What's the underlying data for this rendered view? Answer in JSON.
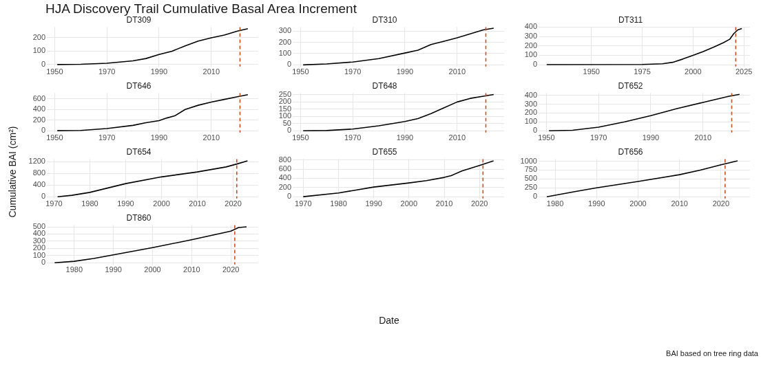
{
  "chart_data": [
    {
      "type": "line",
      "title": "DT309",
      "x": [
        1951,
        1960,
        1970,
        1980,
        1985,
        1990,
        1995,
        2000,
        2005,
        2010,
        2015,
        2020,
        2024
      ],
      "values": [
        0,
        2,
        10,
        28,
        45,
        75,
        100,
        140,
        175,
        200,
        220,
        250,
        268
      ],
      "color": "#000000",
      "xlim": [
        1947,
        2028
      ],
      "ylim": [
        -15,
        280
      ],
      "xticks": [
        1950,
        1970,
        1990,
        2010
      ],
      "yticks": [
        0,
        100,
        200
      ],
      "grid": true,
      "ref_lines": [
        {
          "axis": "x",
          "value": 2021,
          "color": "#c8501e",
          "line_style": "dashed"
        }
      ]
    },
    {
      "type": "line",
      "title": "DT310",
      "x": [
        1951,
        1960,
        1970,
        1980,
        1990,
        1995,
        2000,
        2005,
        2010,
        2015,
        2020,
        2024
      ],
      "values": [
        0,
        8,
        25,
        55,
        105,
        130,
        180,
        210,
        240,
        275,
        310,
        325
      ],
      "color": "#000000",
      "xlim": [
        1947,
        2028
      ],
      "ylim": [
        -15,
        335
      ],
      "xticks": [
        1950,
        1970,
        1990,
        2010
      ],
      "yticks": [
        0,
        100,
        200,
        300
      ],
      "grid": true,
      "ref_lines": [
        {
          "axis": "x",
          "value": 2021,
          "color": "#c8501e",
          "line_style": "dashed"
        }
      ]
    },
    {
      "type": "line",
      "title": "DT311",
      "x": [
        1928,
        1975,
        1985,
        1990,
        1995,
        2000,
        2005,
        2010,
        2015,
        2018,
        2020,
        2022,
        2024
      ],
      "values": [
        0,
        2,
        10,
        25,
        60,
        100,
        140,
        185,
        235,
        270,
        330,
        370,
        385
      ],
      "color": "#000000",
      "xlim": [
        1924,
        2028
      ],
      "ylim": [
        -20,
        400
      ],
      "xticks": [
        1950,
        1975,
        2000,
        2025
      ],
      "yticks": [
        0,
        100,
        200,
        300,
        400
      ],
      "grid": true,
      "ref_lines": [
        {
          "axis": "x",
          "value": 2021,
          "color": "#c8501e",
          "line_style": "dashed"
        }
      ]
    },
    {
      "type": "line",
      "title": "DT646",
      "x": [
        1951,
        1960,
        1970,
        1980,
        1985,
        1990,
        1993,
        1996,
        2000,
        2005,
        2010,
        2015,
        2020,
        2024
      ],
      "values": [
        0,
        5,
        40,
        100,
        150,
        190,
        240,
        280,
        400,
        480,
        540,
        590,
        640,
        680
      ],
      "color": "#000000",
      "xlim": [
        1947,
        2028
      ],
      "ylim": [
        -35,
        710
      ],
      "xticks": [
        1950,
        1970,
        1990,
        2010
      ],
      "yticks": [
        0,
        200,
        400,
        600
      ],
      "grid": true,
      "ref_lines": [
        {
          "axis": "x",
          "value": 2021,
          "color": "#c8501e",
          "line_style": "dashed"
        }
      ]
    },
    {
      "type": "line",
      "title": "DT648",
      "x": [
        1951,
        1960,
        1970,
        1980,
        1990,
        1995,
        2000,
        2005,
        2010,
        2015,
        2020,
        2024
      ],
      "values": [
        0,
        2,
        12,
        35,
        65,
        85,
        120,
        160,
        200,
        225,
        240,
        252
      ],
      "color": "#000000",
      "xlim": [
        1947,
        2028
      ],
      "ylim": [
        -12,
        262
      ],
      "xticks": [
        1950,
        1970,
        1990,
        2010
      ],
      "yticks": [
        0,
        50,
        100,
        150,
        200,
        250
      ],
      "grid": true,
      "ref_lines": [
        {
          "axis": "x",
          "value": 2021,
          "color": "#c8501e",
          "line_style": "dashed"
        }
      ]
    },
    {
      "type": "line",
      "title": "DT652",
      "x": [
        1951,
        1960,
        1970,
        1980,
        1990,
        2000,
        2010,
        2020,
        2024
      ],
      "values": [
        0,
        5,
        40,
        100,
        170,
        250,
        320,
        390,
        410
      ],
      "color": "#000000",
      "xlim": [
        1947,
        2028
      ],
      "ylim": [
        -20,
        425
      ],
      "xticks": [
        1950,
        1970,
        1990,
        2010
      ],
      "yticks": [
        0,
        100,
        200,
        300,
        400
      ],
      "grid": true,
      "ref_lines": [
        {
          "axis": "x",
          "value": 2021,
          "color": "#c8501e",
          "line_style": "dashed"
        }
      ]
    },
    {
      "type": "line",
      "title": "DT654",
      "x": [
        1971,
        1975,
        1980,
        1990,
        2000,
        2010,
        2018,
        2021,
        2024
      ],
      "values": [
        0,
        50,
        150,
        450,
        680,
        850,
        1020,
        1120,
        1230
      ],
      "color": "#000000",
      "xlim": [
        1968,
        2027
      ],
      "ylim": [
        -60,
        1290
      ],
      "xticks": [
        1970,
        1980,
        1990,
        2000,
        2010,
        2020
      ],
      "yticks": [
        0,
        400,
        800,
        1200
      ],
      "grid": true,
      "ref_lines": [
        {
          "axis": "x",
          "value": 2021,
          "color": "#c8501e",
          "line_style": "dashed"
        }
      ]
    },
    {
      "type": "line",
      "title": "DT655",
      "x": [
        1970,
        1980,
        1990,
        2000,
        2005,
        2010,
        2012,
        2015,
        2020,
        2024
      ],
      "values": [
        0,
        80,
        210,
        300,
        350,
        420,
        460,
        560,
        680,
        780
      ],
      "color": "#000000",
      "xlim": [
        1967,
        2027
      ],
      "ylim": [
        -40,
        820
      ],
      "xticks": [
        1970,
        1980,
        1990,
        2000,
        2010,
        2020
      ],
      "yticks": [
        0,
        200,
        400,
        600,
        800
      ],
      "grid": true,
      "ref_lines": [
        {
          "axis": "x",
          "value": 2021,
          "color": "#c8501e",
          "line_style": "dashed"
        }
      ]
    },
    {
      "type": "line",
      "title": "DT656",
      "x": [
        1978,
        1985,
        1990,
        2000,
        2010,
        2015,
        2020,
        2024
      ],
      "values": [
        0,
        150,
        250,
        430,
        620,
        750,
        900,
        1010
      ],
      "color": "#000000",
      "xlim": [
        1976,
        2027
      ],
      "ylim": [
        -50,
        1060
      ],
      "xticks": [
        1980,
        1990,
        2000,
        2010,
        2020
      ],
      "yticks": [
        0,
        250,
        500,
        750,
        1000
      ],
      "grid": true,
      "ref_lines": [
        {
          "axis": "x",
          "value": 2021,
          "color": "#c8501e",
          "line_style": "dashed"
        }
      ]
    },
    {
      "type": "line",
      "title": "DT860",
      "x": [
        1975,
        1980,
        1985,
        1990,
        2000,
        2010,
        2020,
        2022,
        2024
      ],
      "values": [
        0,
        20,
        60,
        110,
        210,
        320,
        440,
        490,
        500
      ],
      "color": "#000000",
      "xlim": [
        1973,
        2027
      ],
      "ylim": [
        -25,
        525
      ],
      "xticks": [
        1980,
        1990,
        2000,
        2010,
        2020
      ],
      "yticks": [
        0,
        100,
        200,
        300,
        400,
        500
      ],
      "grid": true,
      "ref_lines": [
        {
          "axis": "x",
          "value": 2021,
          "color": "#c8501e",
          "line_style": "dashed"
        }
      ]
    },
    {
      "type": "other",
      "title": "HJA Discovery Trail Cumulative Basal Area Increment",
      "xlabel": "Date",
      "ylabel": "Cumulative BAI (cm²)",
      "annotations": [
        "BAI based on tree ring data"
      ]
    }
  ]
}
